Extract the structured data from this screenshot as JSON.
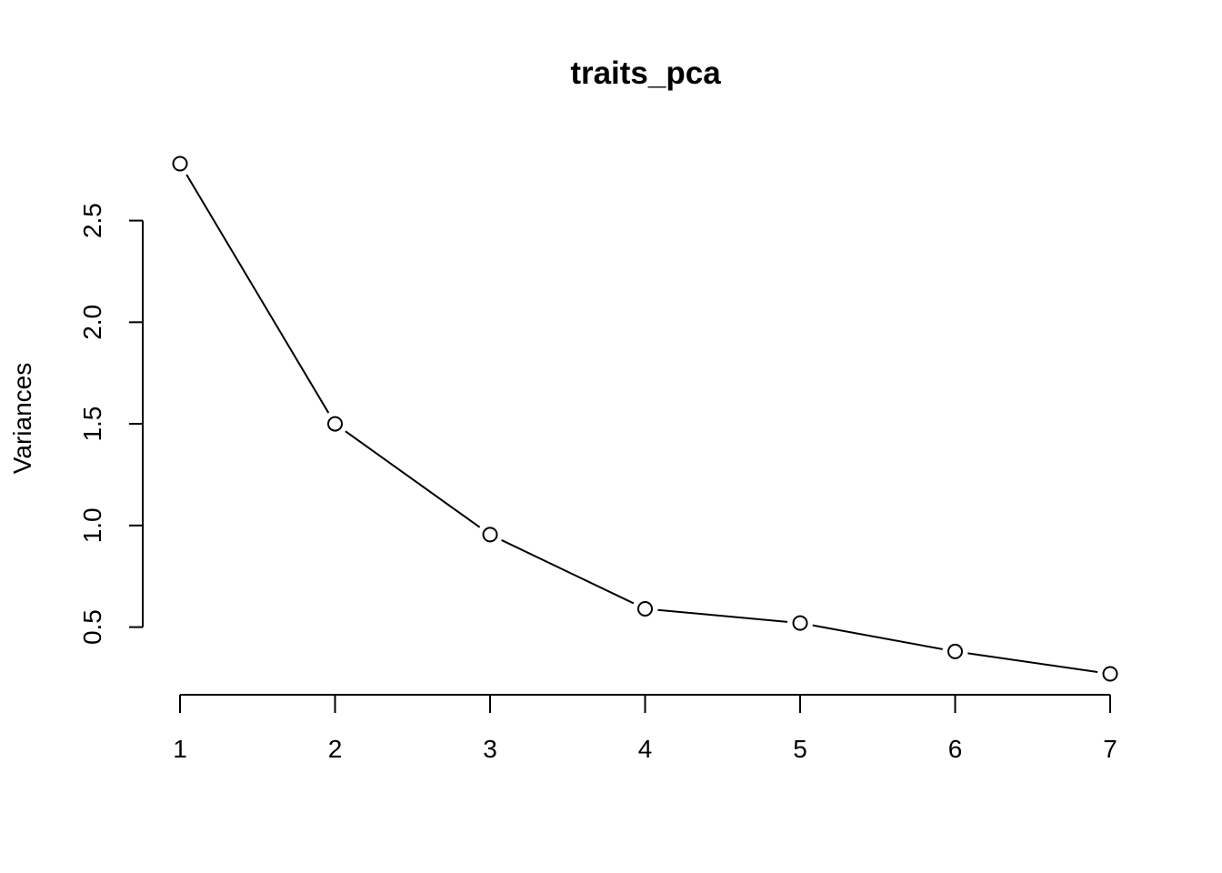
{
  "chart_data": {
    "type": "line",
    "title": "traits_pca",
    "xlabel": "",
    "ylabel": "Variances",
    "x": [
      1,
      2,
      3,
      4,
      5,
      6,
      7
    ],
    "values": [
      2.78,
      1.5,
      0.955,
      0.59,
      0.52,
      0.38,
      0.27
    ],
    "x_ticks": [
      "1",
      "2",
      "3",
      "4",
      "5",
      "6",
      "7"
    ],
    "y_ticks": [
      "0.5",
      "1.0",
      "1.5",
      "2.0",
      "2.5"
    ],
    "y_tick_values": [
      0.5,
      1.0,
      1.5,
      2.0,
      2.5
    ],
    "xlim": [
      1,
      7
    ],
    "ylim": [
      0.27,
      2.78
    ],
    "grid": false,
    "legend": "none",
    "marker": "open-circle",
    "line_color": "#000000"
  }
}
